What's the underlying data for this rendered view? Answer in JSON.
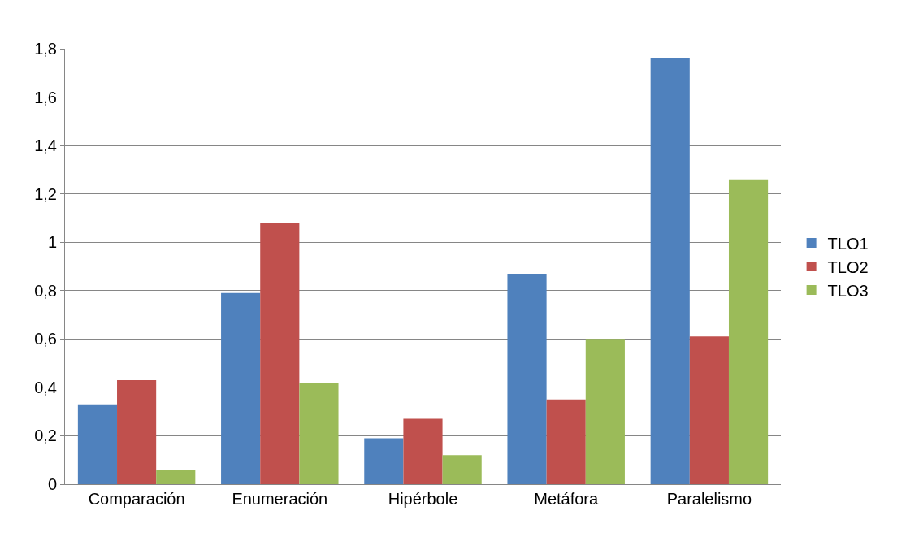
{
  "chart_data": {
    "type": "bar",
    "categories": [
      "Comparación",
      "Enumeración",
      "Hipérbole",
      "Metáfora",
      "Paralelismo"
    ],
    "series": [
      {
        "name": "TLO1",
        "color": "#4f81bd",
        "values": [
          0.33,
          0.79,
          0.19,
          0.87,
          1.76
        ]
      },
      {
        "name": "TLO2",
        "color": "#c0504d",
        "values": [
          0.43,
          1.08,
          0.27,
          0.35,
          0.61
        ]
      },
      {
        "name": "TLO3",
        "color": "#9bbb59",
        "values": [
          0.06,
          0.42,
          0.12,
          0.6,
          1.26
        ]
      }
    ],
    "ylim": [
      0,
      1.8
    ],
    "yticks": [
      {
        "value": 0,
        "label": "0"
      },
      {
        "value": 0.2,
        "label": "0,2"
      },
      {
        "value": 0.4,
        "label": "0,4"
      },
      {
        "value": 0.6,
        "label": "0,6"
      },
      {
        "value": 0.8,
        "label": "0,8"
      },
      {
        "value": 1,
        "label": "1"
      },
      {
        "value": 1.2,
        "label": "1,2"
      },
      {
        "value": 1.4,
        "label": "1,4"
      },
      {
        "value": 1.6,
        "label": "1,6"
      },
      {
        "value": 1.8,
        "label": "1,8"
      }
    ],
    "grid": "y",
    "legend": "right"
  }
}
